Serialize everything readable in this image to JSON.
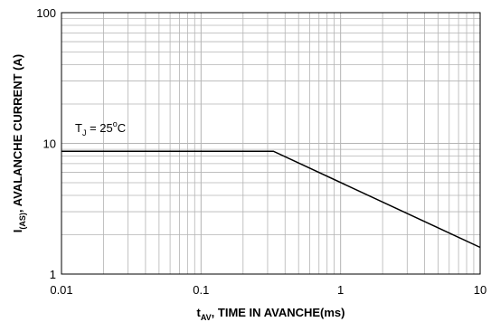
{
  "chart_data": {
    "type": "line",
    "x_scale": "log",
    "y_scale": "log",
    "xlim": [
      0.01,
      10
    ],
    "ylim": [
      1,
      100
    ],
    "x_ticks": [
      "0.01",
      "0.1",
      "1",
      "10"
    ],
    "y_ticks": [
      "1",
      "10",
      "100"
    ],
    "grid": true,
    "xlabel": {
      "main": "t",
      "sub": "AV",
      "rest": ", TIME IN AVANCHE(ms)"
    },
    "ylabel": {
      "main": "I",
      "sub": "(AS)",
      "rest": ", AVALANCHE CURRENT (A)"
    },
    "annotation": {
      "main": "T",
      "sub": "J",
      "mid": " = 25",
      "sup": "o",
      "rest": "C"
    },
    "series": [
      {
        "x": [
          0.01,
          0.33,
          10
        ],
        "y": [
          8.7,
          8.7,
          1.6
        ]
      }
    ],
    "line_color": "#000000",
    "grid_color": "#b4b4b4"
  }
}
